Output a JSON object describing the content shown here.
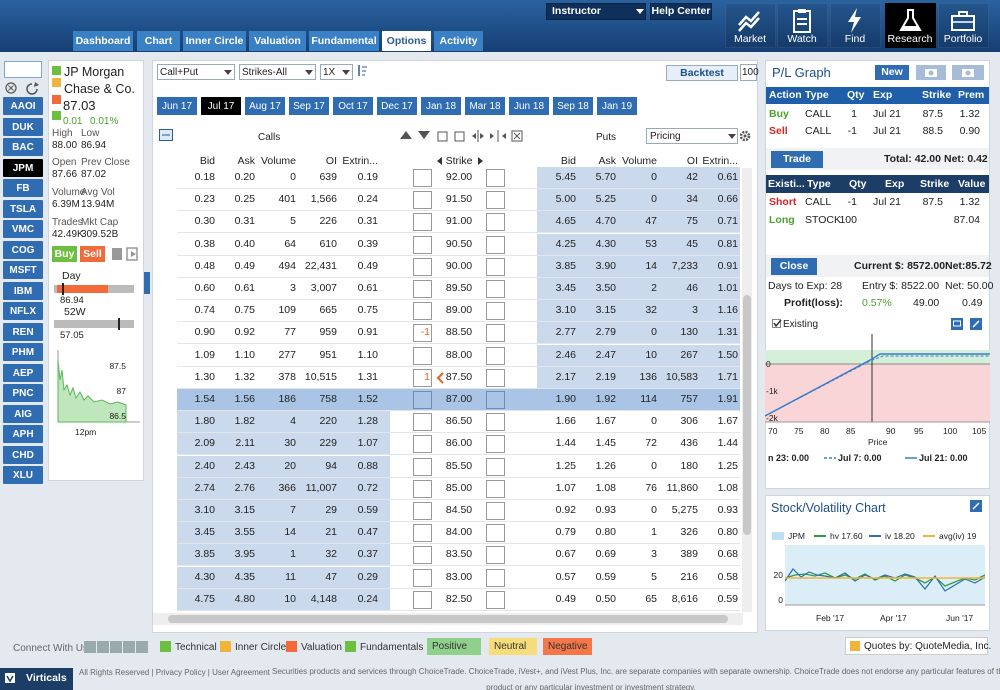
{
  "header": {
    "instructor": "Instructor",
    "help_center": "Help Center",
    "nav": [
      "Market",
      "Watch",
      "Find",
      "Research",
      "Portfolio"
    ],
    "active_nav": 3
  },
  "tabs": [
    "Dashboard",
    "Chart",
    "Inner Circle",
    "Valuation",
    "Fundamental",
    "Options",
    "Activity"
  ],
  "active_tab": 5,
  "symbols": [
    "AAOI",
    "DUK",
    "BAC",
    "JPM",
    "FB",
    "TSLA",
    "VMC",
    "COG",
    "MSFT",
    "IBM",
    "NFLX",
    "REN",
    "PHM",
    "AEP",
    "PNC",
    "AIG",
    "APH",
    "CHD",
    "XLU"
  ],
  "active_symbol": 3,
  "quote": {
    "name_lines": [
      "JP Morgan",
      "Chase & Co."
    ],
    "price": "87.03",
    "change": "0.01",
    "change_pct": "0.01%",
    "stats": [
      {
        "label": "High",
        "value": "88.00"
      },
      {
        "label": "Low",
        "value": "86.94"
      },
      {
        "label": "Open",
        "value": "87.66"
      },
      {
        "label": "Prev Close",
        "value": "87.02"
      },
      {
        "label": "Volume",
        "value": "6.39M"
      },
      {
        "label": "Avg Vol",
        "value": "13.94M"
      },
      {
        "label": "Trades",
        "value": "42.49K"
      },
      {
        "label": "Mkt Cap",
        "value": "309.52B"
      }
    ],
    "buy": "Buy",
    "sell": "Sell",
    "day_label": "Day",
    "day_low": "86.94",
    "w52_label": "52W",
    "w52_low": "57.05",
    "chart_labels": [
      "87.5",
      "87",
      "86.5"
    ],
    "chart_time": "12pm"
  },
  "options": {
    "strategy": "Call+Put",
    "strikes": "Strikes-All",
    "multiplier": "1X",
    "backtest": "Backtest",
    "quantity": "100",
    "expirations": [
      "Jun 17",
      "Jul 17",
      "Aug 17",
      "Sep 17",
      "Oct 17",
      "Dec 17",
      "Jan 18",
      "Mar 18",
      "Jun 18",
      "Sep 18",
      "Jan 19"
    ],
    "active_expiration": 1,
    "calls_label": "Calls",
    "puts_label": "Puts",
    "pricing": "Pricing",
    "columns": {
      "calls": [
        "Bid",
        "Ask",
        "Volume",
        "OI",
        "Extrin..."
      ],
      "strike": "Strike",
      "puts": [
        "Bid",
        "Ask",
        "Volume",
        "OI",
        "Extrin..."
      ]
    },
    "atm_row": 10,
    "rows": [
      {
        "calls": [
          "0.18",
          "0.20",
          "0",
          "639",
          "0.19"
        ],
        "strike": "92.00",
        "puts": [
          "5.45",
          "5.70",
          "0",
          "42",
          "0.61"
        ]
      },
      {
        "calls": [
          "0.23",
          "0.25",
          "401",
          "1,566",
          "0.24"
        ],
        "strike": "91.50",
        "puts": [
          "5.00",
          "5.25",
          "0",
          "34",
          "0.66"
        ]
      },
      {
        "calls": [
          "0.30",
          "0.31",
          "5",
          "226",
          "0.31"
        ],
        "strike": "91.00",
        "puts": [
          "4.65",
          "4.70",
          "47",
          "75",
          "0.71"
        ]
      },
      {
        "calls": [
          "0.38",
          "0.40",
          "64",
          "610",
          "0.39"
        ],
        "strike": "90.50",
        "puts": [
          "4.25",
          "4.30",
          "53",
          "45",
          "0.81"
        ]
      },
      {
        "calls": [
          "0.48",
          "0.49",
          "494",
          "22,431",
          "0.49"
        ],
        "strike": "90.00",
        "puts": [
          "3.85",
          "3.90",
          "14",
          "7,233",
          "0.91"
        ]
      },
      {
        "calls": [
          "0.60",
          "0.61",
          "3",
          "3,007",
          "0.61"
        ],
        "strike": "89.50",
        "puts": [
          "3.45",
          "3.50",
          "2",
          "46",
          "1.01"
        ]
      },
      {
        "calls": [
          "0.74",
          "0.75",
          "109",
          "665",
          "0.75"
        ],
        "strike": "89.00",
        "puts": [
          "3.10",
          "3.15",
          "32",
          "3",
          "1.16"
        ]
      },
      {
        "calls": [
          "0.90",
          "0.92",
          "77",
          "959",
          "0.91"
        ],
        "strike": "88.50",
        "puts": [
          "2.77",
          "2.79",
          "0",
          "130",
          "1.31"
        ],
        "call_qty": "-1"
      },
      {
        "calls": [
          "1.09",
          "1.10",
          "277",
          "951",
          "1.10"
        ],
        "strike": "88.00",
        "puts": [
          "2.46",
          "2.47",
          "10",
          "267",
          "1.50"
        ]
      },
      {
        "calls": [
          "1.30",
          "1.32",
          "378",
          "10,515",
          "1.31"
        ],
        "strike": "87.50",
        "puts": [
          "2.17",
          "2.19",
          "136",
          "10,583",
          "1.71"
        ],
        "call_qty": "1"
      },
      {
        "calls": [
          "1.54",
          "1.56",
          "186",
          "758",
          "1.52"
        ],
        "strike": "87.00",
        "puts": [
          "1.90",
          "1.92",
          "114",
          "757",
          "1.91"
        ]
      },
      {
        "calls": [
          "1.80",
          "1.82",
          "4",
          "220",
          "1.28"
        ],
        "strike": "86.50",
        "puts": [
          "1.66",
          "1.67",
          "0",
          "306",
          "1.67"
        ]
      },
      {
        "calls": [
          "2.09",
          "2.11",
          "30",
          "229",
          "1.07"
        ],
        "strike": "86.00",
        "puts": [
          "1.44",
          "1.45",
          "72",
          "436",
          "1.44"
        ]
      },
      {
        "calls": [
          "2.40",
          "2.43",
          "20",
          "94",
          "0.88"
        ],
        "strike": "85.50",
        "puts": [
          "1.25",
          "1.26",
          "0",
          "180",
          "1.25"
        ]
      },
      {
        "calls": [
          "2.74",
          "2.76",
          "366",
          "11,007",
          "0.72"
        ],
        "strike": "85.00",
        "puts": [
          "1.07",
          "1.08",
          "76",
          "11,860",
          "1.08"
        ]
      },
      {
        "calls": [
          "3.10",
          "3.15",
          "7",
          "29",
          "0.59"
        ],
        "strike": "84.50",
        "puts": [
          "0.92",
          "0.93",
          "0",
          "5,275",
          "0.93"
        ]
      },
      {
        "calls": [
          "3.45",
          "3.55",
          "14",
          "21",
          "0.47"
        ],
        "strike": "84.00",
        "puts": [
          "0.79",
          "0.80",
          "1",
          "326",
          "0.80"
        ]
      },
      {
        "calls": [
          "3.85",
          "3.95",
          "1",
          "32",
          "0.37"
        ],
        "strike": "83.50",
        "puts": [
          "0.67",
          "0.69",
          "3",
          "389",
          "0.68"
        ]
      },
      {
        "calls": [
          "4.30",
          "4.35",
          "11",
          "47",
          "0.29"
        ],
        "strike": "83.00",
        "puts": [
          "0.57",
          "0.59",
          "5",
          "216",
          "0.58"
        ]
      },
      {
        "calls": [
          "4.75",
          "4.80",
          "10",
          "4,148",
          "0.24"
        ],
        "strike": "82.50",
        "puts": [
          "0.49",
          "0.50",
          "65",
          "8,616",
          "0.59"
        ]
      }
    ]
  },
  "pl": {
    "title": "P/L Graph",
    "new_button": "New",
    "legs": {
      "headers": [
        "Action",
        "Type",
        "Qty",
        "Exp",
        "Strike",
        "Prem"
      ],
      "rows": [
        [
          "Buy",
          "CALL",
          "1",
          "Jul 21",
          "87.5",
          "1.32"
        ],
        [
          "Sell",
          "CALL",
          "-1",
          "Jul 21",
          "88.5",
          "0.90"
        ]
      ]
    },
    "trade": "Trade",
    "total": "Total: 42.00",
    "net": "Net: 0.42",
    "existing": {
      "headers": [
        "Existi...",
        "Type",
        "Qty",
        "Exp",
        "Strike",
        "Value"
      ],
      "rows": [
        [
          "Short",
          "CALL",
          "-1",
          "Jul 21",
          "87.5",
          "1.32"
        ],
        [
          "Long",
          "STOCK",
          "100",
          null,
          null,
          "87.04"
        ]
      ]
    },
    "close": "Close",
    "current": "Current $: 8572.00",
    "current_net": "Net:85.72",
    "days_to_exp": "Days to Exp:  28",
    "entry": "Entry $: 8522.00",
    "entry_net": "Net: 50.00",
    "profit_label": "Profit(loss):",
    "profit_pct": "0.57%",
    "profit_value": "49.00",
    "profit_net": "0.49",
    "existing_toggle": "Existing",
    "graph": {
      "y_labels": [
        "0",
        "-1k",
        "-2k"
      ],
      "x_labels": [
        "70",
        "75",
        "80",
        "85",
        "90",
        "95",
        "100",
        "105"
      ],
      "x_title": "Price",
      "legend": [
        "n 23: 0.00",
        "Jul 7: 0.00",
        "Jul 21: 0.00"
      ]
    }
  },
  "volatility": {
    "title": "Stock/Volatility Chart",
    "legend": [
      "JPM",
      "hv 17.60",
      "iv 18.20",
      "avg(iv) 19"
    ],
    "y_labels": [
      "20",
      "0"
    ],
    "x_labels": [
      "Feb '17",
      "Apr '17",
      "Jun '17"
    ]
  },
  "footer": {
    "connect": "Connect With Us",
    "legend": [
      "Technical",
      "Inner Circle",
      "Valuation",
      "Fundamentals"
    ],
    "sentiment": [
      "Positive",
      "Neutral",
      "Negative"
    ],
    "quotes_by": "Quotes by: QuoteMedia, Inc.",
    "rights": "All Rights Reserved | Privacy Policy | User Agreement",
    "disclaimer": [
      "Securities products and services through ChoiceTrade. ChoiceTrade, iVest+, and iVest Plus, Inc. are separate companies with separate ownership. ChoiceTrade does not endorse any particular features of this",
      "product or any particular investment or investment strategy."
    ],
    "virticals": "Virticals"
  }
}
